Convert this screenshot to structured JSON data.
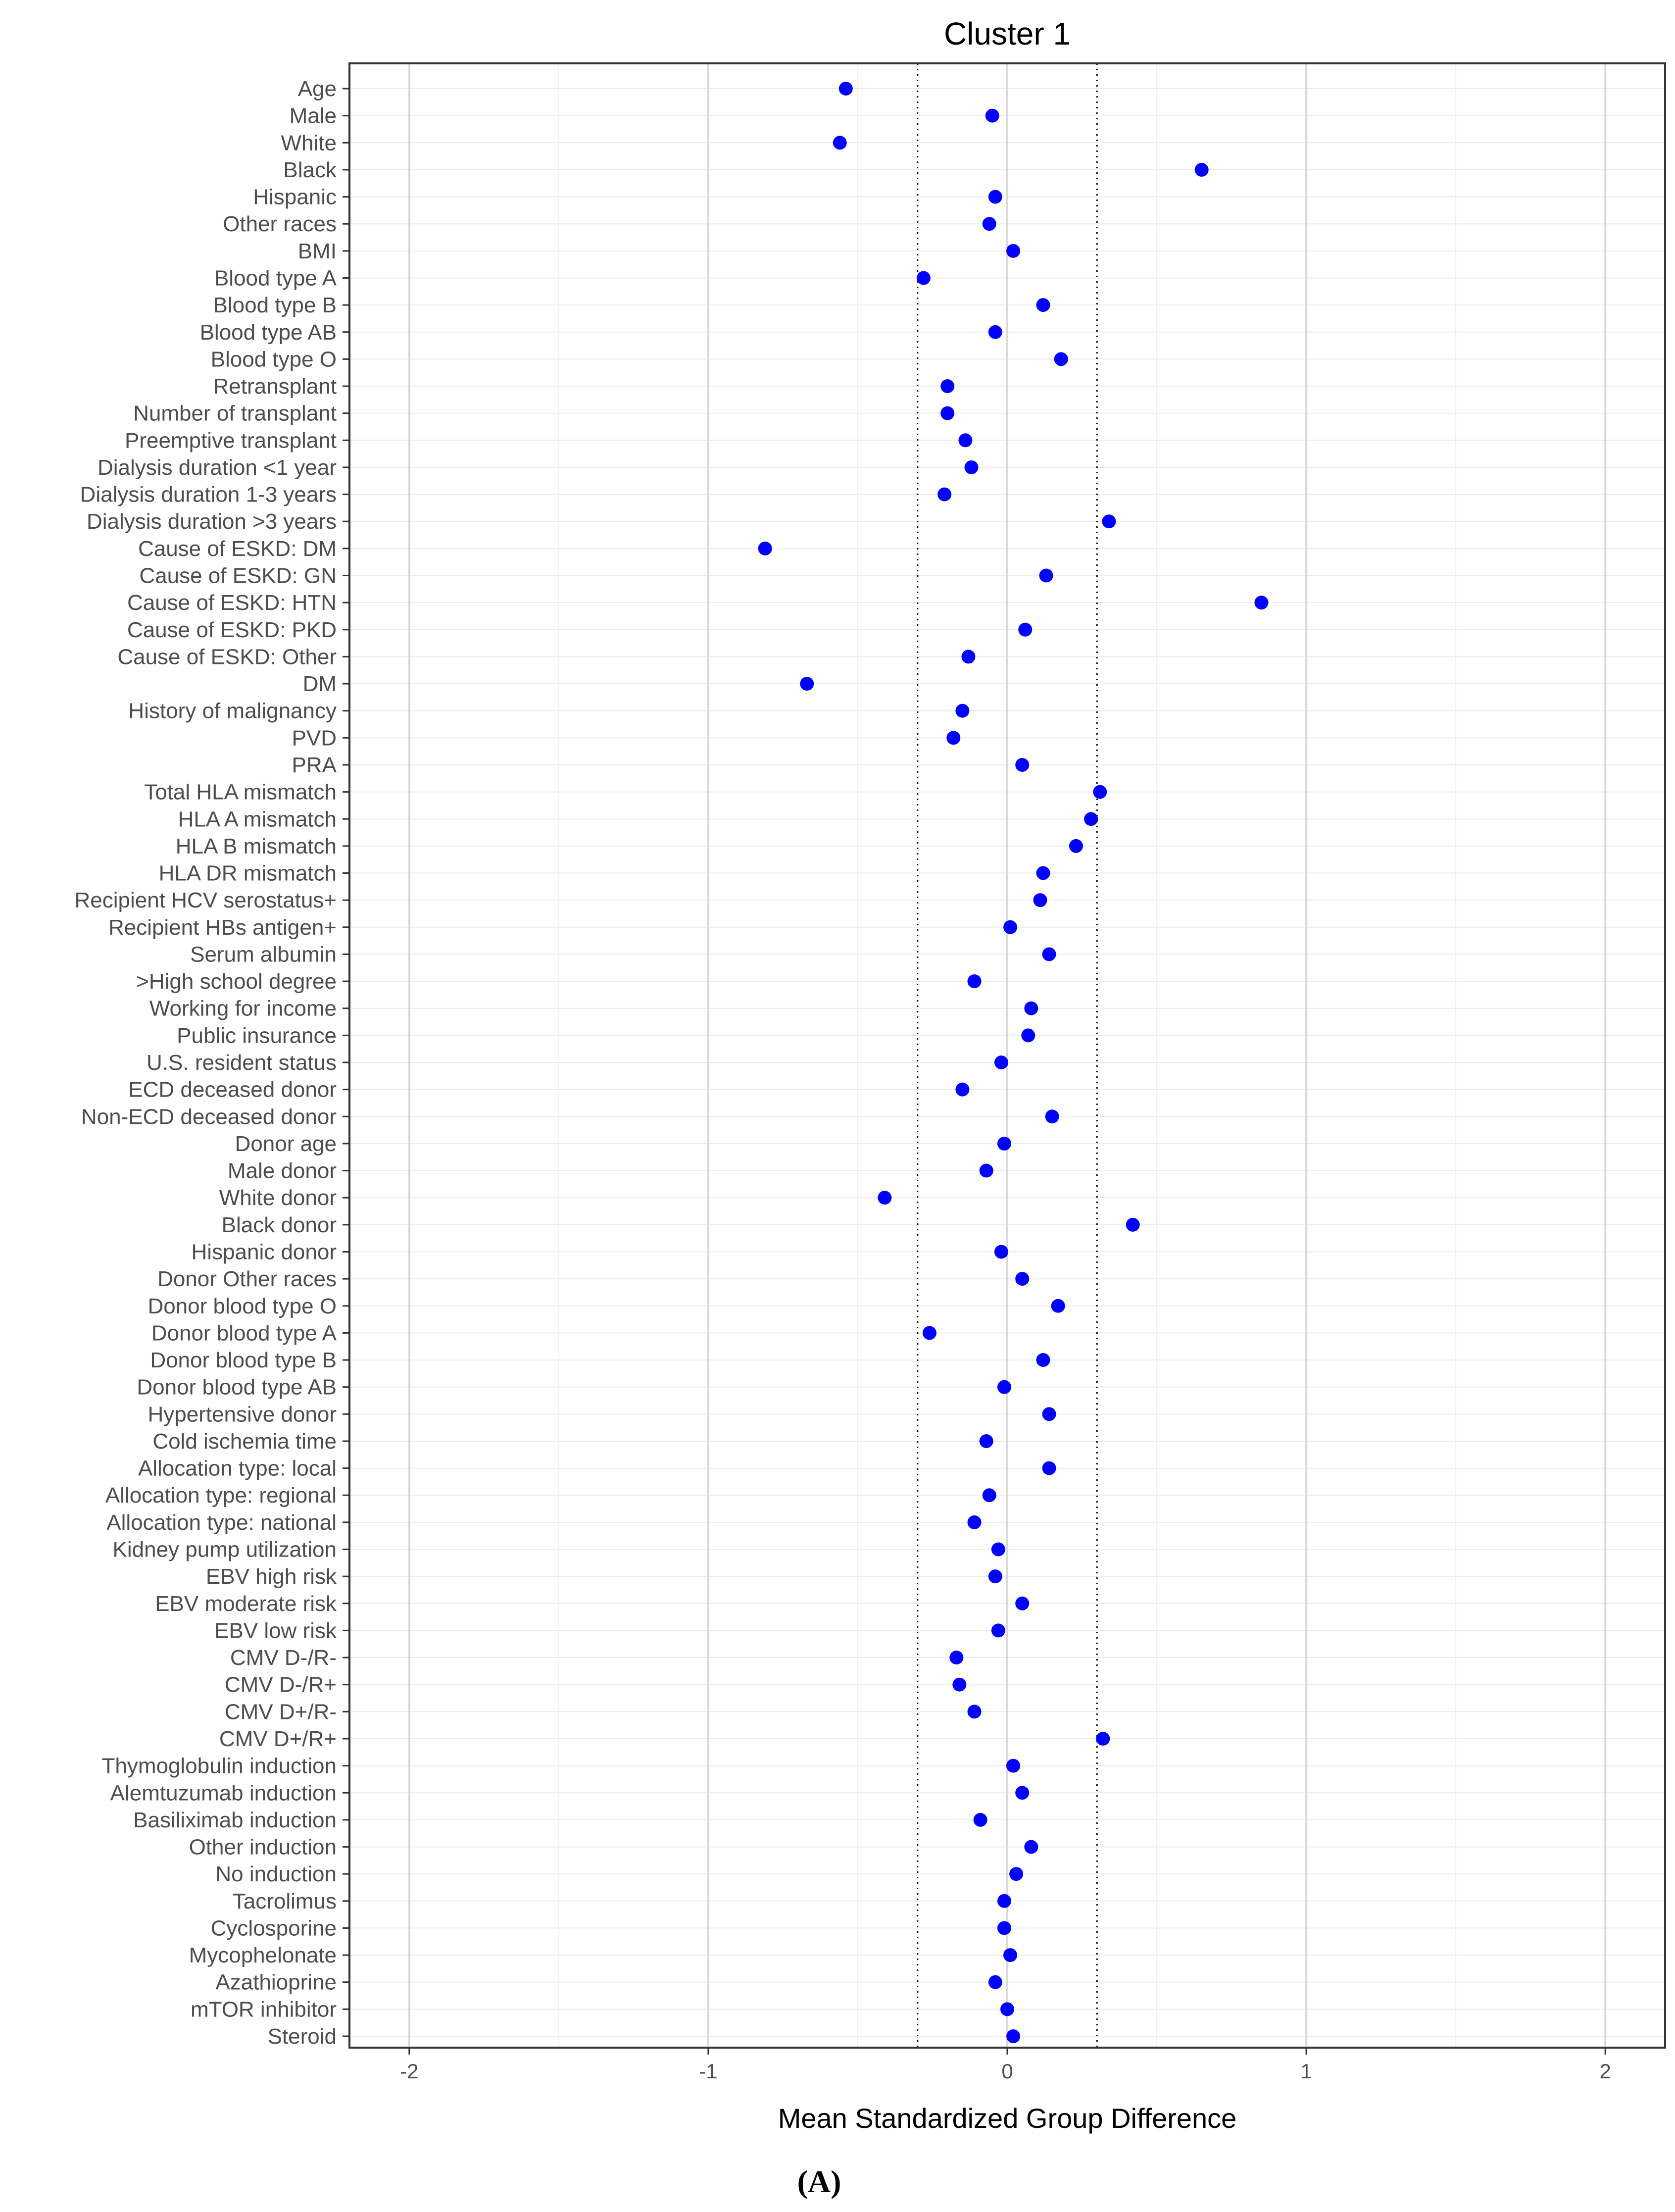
{
  "chart_data": {
    "type": "scatter",
    "title": "Cluster 1",
    "xlabel": "Mean Standardized Group Difference",
    "ylabel": "",
    "xlim": [
      -2.2,
      2.2
    ],
    "xticks": [
      -2,
      -1,
      0,
      1,
      2
    ],
    "xtick_labels": [
      "-2",
      "-1",
      "0",
      "1",
      "2"
    ],
    "reference_lines": [
      -0.3,
      0.3
    ],
    "grid": true,
    "point_color": "#0000ff",
    "caption": "(A)",
    "categories": [
      "Age",
      "Male",
      "White",
      "Black",
      "Hispanic",
      "Other races",
      "BMI",
      "Blood type A",
      "Blood type B",
      "Blood type AB",
      "Blood type O",
      "Retransplant",
      "Number of transplant",
      "Preemptive transplant",
      "Dialysis duration <1 year",
      "Dialysis duration 1-3 years",
      "Dialysis duration >3 years",
      "Cause of ESKD: DM",
      "Cause of ESKD: GN",
      "Cause of ESKD: HTN",
      "Cause of ESKD: PKD",
      "Cause of ESKD: Other",
      "DM",
      "History of malignancy",
      "PVD",
      "PRA",
      "Total HLA mismatch",
      "HLA A mismatch",
      "HLA B mismatch",
      "HLA DR mismatch",
      "Recipient HCV serostatus+",
      "Recipient HBs antigen+",
      "Serum albumin",
      ">High school degree",
      "Working for income",
      "Public insurance",
      "U.S. resident status",
      "ECD deceased donor",
      "Non-ECD deceased donor",
      "Donor age",
      "Male donor",
      "White donor",
      "Black donor",
      "Hispanic donor",
      "Donor Other races",
      "Donor blood type O",
      "Donor blood type A",
      "Donor blood type B",
      "Donor blood type AB",
      "Hypertensive donor",
      "Cold ischemia time",
      "Allocation type: local",
      "Allocation type: regional",
      "Allocation type: national",
      "Kidney pump utilization",
      "EBV high risk",
      "EBV moderate risk",
      "EBV low risk",
      "CMV D-/R-",
      "CMV D-/R+",
      "CMV D+/R-",
      "CMV D+/R+",
      "Thymoglobulin induction",
      "Alemtuzumab induction",
      "Basiliximab induction",
      "Other induction",
      "No induction",
      "Tacrolimus",
      "Cyclosporine",
      "Mycophelonate",
      "Azathioprine",
      "mTOR inhibitor",
      "Steroid"
    ],
    "values": [
      -0.54,
      -0.05,
      -0.56,
      0.65,
      -0.04,
      -0.06,
      0.02,
      -0.28,
      0.12,
      -0.04,
      0.18,
      -0.2,
      -0.2,
      -0.14,
      -0.12,
      -0.21,
      0.34,
      -0.81,
      0.13,
      0.85,
      0.06,
      -0.13,
      -0.67,
      -0.15,
      -0.18,
      0.05,
      0.31,
      0.28,
      0.23,
      0.12,
      0.11,
      0.01,
      0.14,
      -0.11,
      0.08,
      0.07,
      -0.02,
      -0.15,
      0.15,
      -0.01,
      -0.07,
      -0.41,
      0.42,
      -0.02,
      0.05,
      0.17,
      -0.26,
      0.12,
      -0.01,
      0.14,
      -0.07,
      0.14,
      -0.06,
      -0.11,
      -0.03,
      -0.04,
      0.05,
      -0.03,
      -0.17,
      -0.16,
      -0.11,
      0.32,
      0.02,
      0.05,
      -0.09,
      0.08,
      0.03,
      -0.01,
      -0.01,
      0.01,
      -0.04,
      0.0,
      0.02
    ]
  }
}
